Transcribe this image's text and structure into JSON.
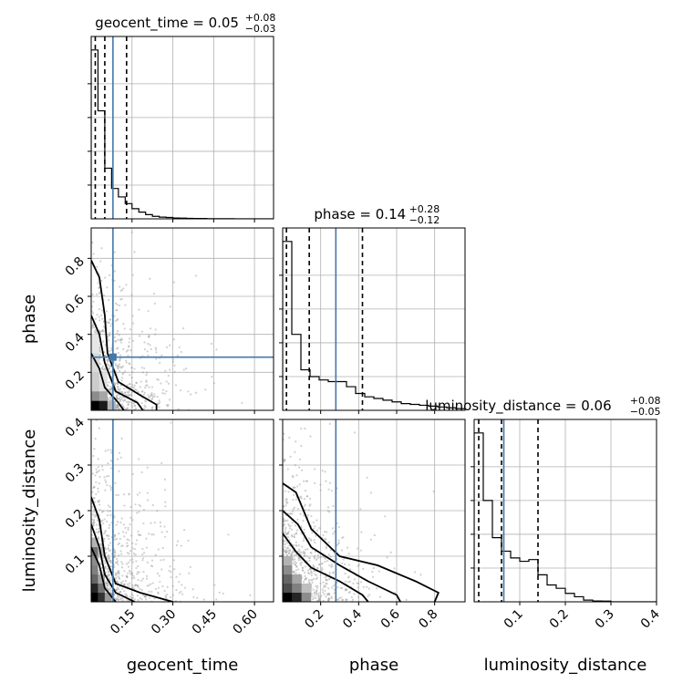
{
  "chart_data": {
    "type": "corner",
    "params": [
      "geocent_time",
      "phase",
      "luminosity_distance"
    ],
    "axis_labels": [
      "geocent_time",
      "phase",
      "luminosity_distance"
    ],
    "ranges": [
      [
        0.0,
        0.67
      ],
      [
        0.0,
        0.96
      ],
      [
        0.0,
        0.4
      ]
    ],
    "ticks": [
      {
        "values": [
          0.15,
          0.3,
          0.45,
          0.6
        ],
        "labels": [
          "0.15",
          "0.30",
          "0.45",
          "0.60"
        ]
      },
      {
        "values": [
          0.2,
          0.4,
          0.6,
          0.8
        ],
        "labels": [
          "0.2",
          "0.4",
          "0.6",
          "0.8"
        ]
      },
      {
        "values": [
          0.1,
          0.2,
          0.3,
          0.4
        ],
        "labels": [
          "0.1",
          "0.2",
          "0.3",
          "0.4"
        ]
      }
    ],
    "truths": [
      0.08,
      0.28,
      0.065
    ],
    "truth_color": "#4477aa",
    "contour_color": "#000000",
    "point_color": "#999999",
    "grid": true,
    "marginals": [
      {
        "param": "geocent_time",
        "title_main": "geocent_time = 0.05",
        "title_plus": "+0.08",
        "title_minus": "−0.03",
        "quantiles": [
          0.015,
          0.05,
          0.13
        ],
        "bin_edges": [
          0.0,
          0.025,
          0.05,
          0.075,
          0.1,
          0.125,
          0.15,
          0.175,
          0.2,
          0.225,
          0.25,
          0.275,
          0.3,
          0.325,
          0.35,
          0.375,
          0.4,
          0.425,
          0.45,
          0.475,
          0.5,
          0.525,
          0.55,
          0.575,
          0.6,
          0.625,
          0.65,
          0.675
        ],
        "counts": [
          1.0,
          0.64,
          0.3,
          0.18,
          0.13,
          0.09,
          0.06,
          0.04,
          0.025,
          0.015,
          0.01,
          0.008,
          0.005,
          0.004,
          0.003,
          0.002,
          0.002,
          0.001,
          0.001,
          0.001,
          0.001,
          0.0,
          0.0,
          0.0,
          0.0,
          0.0,
          0.0
        ]
      },
      {
        "param": "phase",
        "title_main": "phase = 0.14",
        "title_plus": "+0.28",
        "title_minus": "−0.12",
        "quantiles": [
          0.02,
          0.14,
          0.42
        ],
        "bin_edges": [
          0.0,
          0.048,
          0.096,
          0.144,
          0.192,
          0.24,
          0.288,
          0.336,
          0.384,
          0.432,
          0.48,
          0.528,
          0.576,
          0.624,
          0.672,
          0.72,
          0.768,
          0.816,
          0.864,
          0.912,
          0.96
        ],
        "counts": [
          1.0,
          0.45,
          0.24,
          0.2,
          0.18,
          0.17,
          0.17,
          0.14,
          0.1,
          0.08,
          0.07,
          0.06,
          0.05,
          0.04,
          0.035,
          0.03,
          0.025,
          0.02,
          0.015,
          0.01
        ]
      },
      {
        "param": "luminosity_distance",
        "title_main": "luminosity_distance = 0.06",
        "title_plus": "+0.08",
        "title_minus": "−0.05",
        "quantiles": [
          0.01,
          0.06,
          0.14
        ],
        "bin_edges": [
          0.0,
          0.02,
          0.04,
          0.06,
          0.08,
          0.1,
          0.12,
          0.14,
          0.16,
          0.18,
          0.2,
          0.22,
          0.24,
          0.26,
          0.28,
          0.3,
          0.32,
          0.34,
          0.36,
          0.38,
          0.4
        ],
        "counts": [
          1.0,
          0.6,
          0.38,
          0.3,
          0.26,
          0.24,
          0.25,
          0.16,
          0.1,
          0.08,
          0.05,
          0.03,
          0.01,
          0.005,
          0.004,
          0.0,
          0.0,
          0.0,
          0.0,
          0.0
        ]
      }
    ],
    "contours": [
      {
        "x_param": "geocent_time",
        "y_param": "phase",
        "levels": [
          [
            [
              0.0,
              0.79
            ],
            [
              0.03,
              0.7
            ],
            [
              0.05,
              0.5
            ],
            [
              0.06,
              0.3
            ],
            [
              0.1,
              0.15
            ],
            [
              0.18,
              0.08
            ],
            [
              0.24,
              0.03
            ],
            [
              0.24,
              0.0
            ]
          ],
          [
            [
              0.0,
              0.5
            ],
            [
              0.03,
              0.4
            ],
            [
              0.05,
              0.25
            ],
            [
              0.09,
              0.1
            ],
            [
              0.17,
              0.04
            ],
            [
              0.19,
              0.0
            ]
          ],
          [
            [
              0.0,
              0.3
            ],
            [
              0.03,
              0.22
            ],
            [
              0.05,
              0.12
            ],
            [
              0.1,
              0.04
            ],
            [
              0.12,
              0.0
            ]
          ]
        ]
      },
      {
        "x_param": "geocent_time",
        "y_param": "luminosity_distance",
        "levels": [
          [
            [
              0.0,
              0.23
            ],
            [
              0.03,
              0.18
            ],
            [
              0.05,
              0.1
            ],
            [
              0.09,
              0.04
            ],
            [
              0.18,
              0.02
            ],
            [
              0.3,
              0.0
            ]
          ],
          [
            [
              0.0,
              0.17
            ],
            [
              0.03,
              0.12
            ],
            [
              0.05,
              0.06
            ],
            [
              0.09,
              0.02
            ],
            [
              0.16,
              0.0
            ]
          ],
          [
            [
              0.0,
              0.12
            ],
            [
              0.03,
              0.08
            ],
            [
              0.05,
              0.03
            ],
            [
              0.09,
              0.0
            ]
          ]
        ]
      },
      {
        "x_param": "phase",
        "y_param": "luminosity_distance",
        "levels": [
          [
            [
              0.0,
              0.26
            ],
            [
              0.07,
              0.24
            ],
            [
              0.15,
              0.16
            ],
            [
              0.3,
              0.1
            ],
            [
              0.5,
              0.08
            ],
            [
              0.7,
              0.045
            ],
            [
              0.82,
              0.02
            ],
            [
              0.8,
              0.0
            ]
          ],
          [
            [
              0.0,
              0.2
            ],
            [
              0.08,
              0.17
            ],
            [
              0.15,
              0.12
            ],
            [
              0.3,
              0.08
            ],
            [
              0.45,
              0.045
            ],
            [
              0.6,
              0.015
            ],
            [
              0.62,
              0.0
            ]
          ],
          [
            [
              0.0,
              0.15
            ],
            [
              0.07,
              0.11
            ],
            [
              0.15,
              0.075
            ],
            [
              0.3,
              0.045
            ],
            [
              0.42,
              0.015
            ],
            [
              0.45,
              0.0
            ]
          ]
        ]
      }
    ],
    "density_bins": [
      {
        "x_param": "geocent_time",
        "y_param": "phase",
        "cells": [
          [
            0.0,
            0.0,
            0.03,
            0.05,
            1.0
          ],
          [
            0.03,
            0.0,
            0.06,
            0.05,
            0.9
          ],
          [
            0.0,
            0.05,
            0.03,
            0.1,
            0.45
          ],
          [
            0.03,
            0.05,
            0.06,
            0.1,
            0.35
          ],
          [
            0.06,
            0.0,
            0.09,
            0.05,
            0.3
          ],
          [
            0.0,
            0.1,
            0.03,
            0.2,
            0.2
          ],
          [
            0.0,
            0.2,
            0.03,
            0.3,
            0.15
          ],
          [
            0.03,
            0.1,
            0.06,
            0.2,
            0.12
          ],
          [
            0.0,
            0.3,
            0.03,
            0.4,
            0.1
          ]
        ]
      },
      {
        "x_param": "geocent_time",
        "y_param": "luminosity_distance",
        "cells": [
          [
            0.0,
            0.0,
            0.025,
            0.02,
            1.0
          ],
          [
            0.025,
            0.0,
            0.05,
            0.02,
            0.8
          ],
          [
            0.0,
            0.02,
            0.025,
            0.04,
            0.85
          ],
          [
            0.0,
            0.04,
            0.025,
            0.06,
            0.6
          ],
          [
            0.025,
            0.02,
            0.05,
            0.04,
            0.55
          ],
          [
            0.0,
            0.06,
            0.025,
            0.08,
            0.5
          ],
          [
            0.0,
            0.08,
            0.025,
            0.1,
            0.45
          ],
          [
            0.0,
            0.1,
            0.025,
            0.12,
            0.55
          ],
          [
            0.025,
            0.04,
            0.05,
            0.06,
            0.35
          ],
          [
            0.05,
            0.0,
            0.075,
            0.02,
            0.4
          ],
          [
            0.0,
            0.12,
            0.025,
            0.14,
            0.3
          ],
          [
            0.025,
            0.1,
            0.05,
            0.12,
            0.25
          ]
        ]
      },
      {
        "x_param": "phase",
        "y_param": "luminosity_distance",
        "cells": [
          [
            0.0,
            0.0,
            0.05,
            0.02,
            1.0
          ],
          [
            0.05,
            0.0,
            0.1,
            0.02,
            0.85
          ],
          [
            0.0,
            0.02,
            0.05,
            0.04,
            0.7
          ],
          [
            0.05,
            0.02,
            0.1,
            0.04,
            0.5
          ],
          [
            0.0,
            0.04,
            0.05,
            0.06,
            0.6
          ],
          [
            0.0,
            0.06,
            0.05,
            0.08,
            0.45
          ],
          [
            0.1,
            0.0,
            0.15,
            0.02,
            0.45
          ],
          [
            0.05,
            0.04,
            0.1,
            0.06,
            0.35
          ],
          [
            0.0,
            0.08,
            0.05,
            0.1,
            0.3
          ],
          [
            0.1,
            0.02,
            0.15,
            0.04,
            0.25
          ]
        ]
      }
    ]
  }
}
